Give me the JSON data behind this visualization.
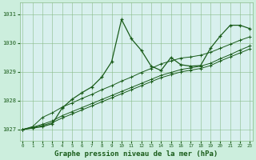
{
  "background_color": "#cceedd",
  "plot_bg_color": "#d8f0ee",
  "grid_color": "#88bb88",
  "line_color": "#1a5c1a",
  "xlabel": "Graphe pression niveau de la mer (hPa)",
  "ylim": [
    1026.6,
    1031.4
  ],
  "xlim": [
    -0.3,
    23.3
  ],
  "yticks": [
    1027,
    1028,
    1029,
    1030,
    1031
  ],
  "xticks": [
    0,
    1,
    2,
    3,
    4,
    5,
    6,
    7,
    8,
    9,
    10,
    11,
    12,
    13,
    14,
    15,
    16,
    17,
    18,
    19,
    20,
    21,
    22,
    23
  ],
  "series": [
    [
      1027.0,
      1027.05,
      1027.1,
      1027.2,
      1027.75,
      1028.05,
      1028.28,
      1028.48,
      1028.82,
      1029.35,
      1030.82,
      1030.15,
      1029.75,
      1029.2,
      1029.05,
      1029.5,
      1029.25,
      1029.2,
      1029.22,
      1029.82,
      1030.25,
      1030.62,
      1030.62,
      1030.5
    ],
    [
      1027.0,
      1027.1,
      1027.42,
      1027.58,
      1027.78,
      1027.92,
      1028.08,
      1028.22,
      1028.38,
      1028.52,
      1028.68,
      1028.82,
      1028.98,
      1029.12,
      1029.28,
      1029.38,
      1029.48,
      1029.52,
      1029.58,
      1029.68,
      1029.82,
      1029.96,
      1030.1,
      1030.22
    ],
    [
      1027.0,
      1027.08,
      1027.18,
      1027.3,
      1027.48,
      1027.62,
      1027.76,
      1027.9,
      1028.04,
      1028.18,
      1028.32,
      1028.46,
      1028.6,
      1028.74,
      1028.88,
      1028.98,
      1029.08,
      1029.14,
      1029.2,
      1029.3,
      1029.46,
      1029.6,
      1029.76,
      1029.9
    ],
    [
      1027.0,
      1027.06,
      1027.14,
      1027.24,
      1027.4,
      1027.54,
      1027.68,
      1027.82,
      1027.96,
      1028.1,
      1028.24,
      1028.38,
      1028.52,
      1028.66,
      1028.8,
      1028.9,
      1029.0,
      1029.06,
      1029.12,
      1029.22,
      1029.38,
      1029.52,
      1029.66,
      1029.8
    ]
  ]
}
